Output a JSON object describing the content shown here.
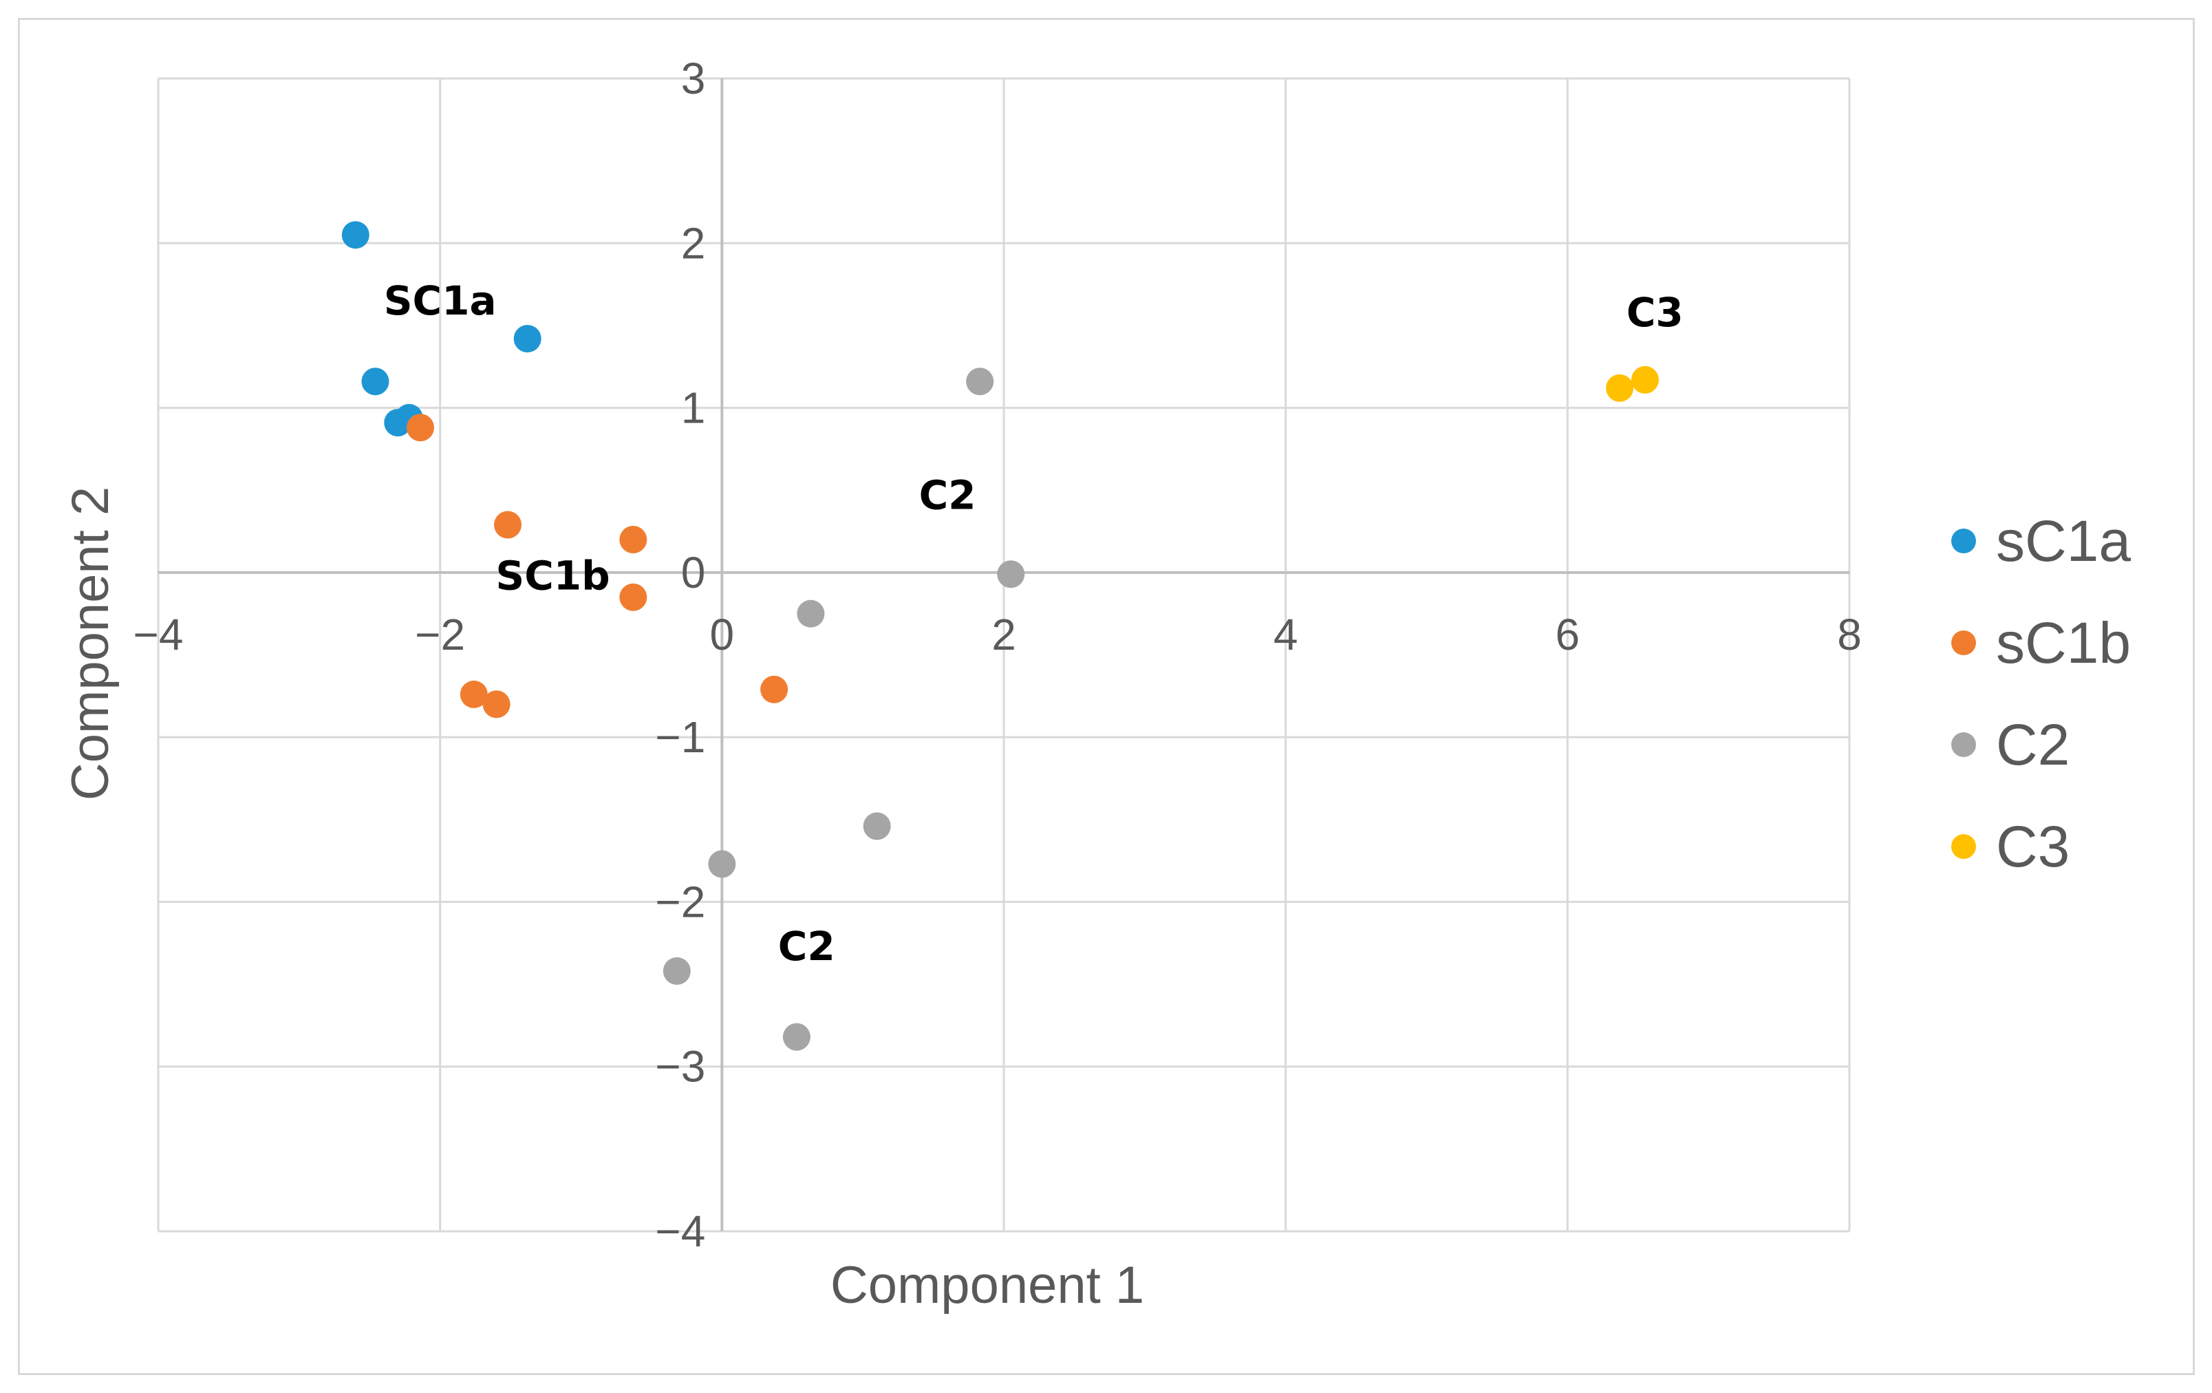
{
  "chart_data": {
    "type": "scatter",
    "title": "",
    "xlabel": "Component 1",
    "ylabel": "Component 2",
    "xlim": [
      -4,
      8
    ],
    "ylim": [
      -4,
      3
    ],
    "x_ticks": [
      -4,
      -2,
      0,
      2,
      4,
      6,
      8
    ],
    "y_ticks": [
      3,
      2,
      1,
      0,
      -1,
      -2,
      -3,
      -4
    ],
    "x_tick_labels": [
      "−4",
      "−2",
      "0",
      "2",
      "4",
      "6",
      "8"
    ],
    "y_tick_labels": [
      "3",
      "2",
      "1",
      "0",
      "−1",
      "−2",
      "−3",
      "−4"
    ],
    "grid": true,
    "legend_position": "right",
    "series": [
      {
        "name": "sC1a",
        "color": "#1f96d4",
        "points": [
          [
            -2.6,
            2.05
          ],
          [
            -1.38,
            1.42
          ],
          [
            -2.46,
            1.16
          ],
          [
            -2.3,
            0.91
          ],
          [
            -2.22,
            0.94
          ]
        ]
      },
      {
        "name": "sC1b",
        "color": "#f07d2f",
        "points": [
          [
            -2.14,
            0.88
          ],
          [
            -1.52,
            0.29
          ],
          [
            -0.63,
            0.2
          ],
          [
            -0.63,
            -0.15
          ],
          [
            -1.76,
            -0.74
          ],
          [
            -1.6,
            -0.8
          ],
          [
            0.37,
            -0.71
          ]
        ]
      },
      {
        "name": "C2",
        "color": "#a5a5a5",
        "points": [
          [
            1.83,
            1.16
          ],
          [
            2.05,
            -0.01
          ],
          [
            0.63,
            -0.25
          ],
          [
            1.1,
            -1.54
          ],
          [
            0.0,
            -1.77
          ],
          [
            -0.32,
            -2.42
          ],
          [
            0.53,
            -2.82
          ]
        ]
      },
      {
        "name": "C3",
        "color": "#ffc000",
        "points": [
          [
            6.37,
            1.12
          ],
          [
            6.55,
            1.17
          ]
        ]
      }
    ],
    "annotations": [
      {
        "text": "SC1a",
        "x": -2.0,
        "y": 1.65
      },
      {
        "text": "SC1b",
        "x": -1.2,
        "y": -0.02
      },
      {
        "text": "C2",
        "x": 1.6,
        "y": 0.47
      },
      {
        "text": "C2",
        "x": 0.6,
        "y": -2.27
      },
      {
        "text": "C3",
        "x": 6.62,
        "y": 1.58
      }
    ]
  }
}
